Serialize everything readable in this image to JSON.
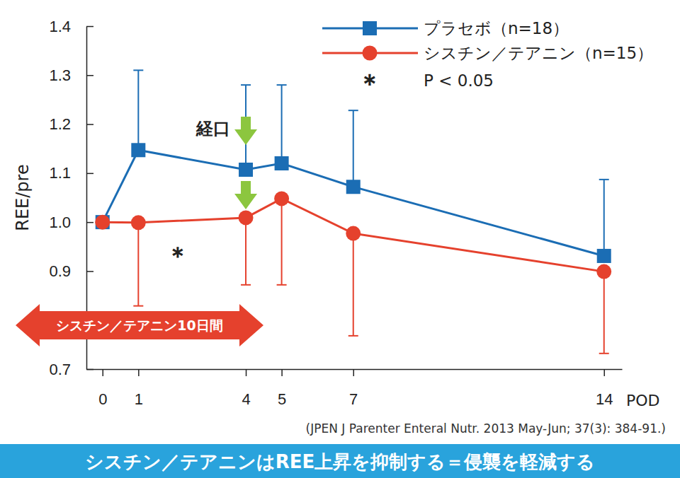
{
  "chart_data": {
    "type": "line",
    "y_label": "REE/pre",
    "x_label": "POD",
    "x": [
      0,
      1,
      4,
      5,
      7,
      14
    ],
    "xlim": [
      -0.45,
      14.5
    ],
    "xticks": [
      0,
      1,
      4,
      5,
      7,
      14
    ],
    "ylim": [
      0.7,
      1.4
    ],
    "yticks": [
      0.7,
      0.9,
      {
        "value": 1.0,
        "label": "1.0"
      },
      1.1,
      1.2,
      1.3,
      1.4
    ],
    "legend": "top-right",
    "series": [
      {
        "name": "プラセボ（n=18）",
        "color": "#1b6db4",
        "marker": "square",
        "values": [
          1.0,
          1.147,
          1.107,
          1.12,
          1.072,
          0.931
        ],
        "errors_upper": [
          0,
          0.163,
          0.173,
          0.16,
          0.156,
          0.156
        ]
      },
      {
        "name": "シスチン／テアニン（n=15）",
        "color": "#e5412d",
        "marker": "circle",
        "values": [
          1.0,
          0.999,
          1.009,
          1.048,
          0.977,
          0.899
        ],
        "errors_lower": [
          0,
          0.17,
          0.137,
          0.176,
          0.209,
          0.167
        ]
      }
    ],
    "significance_mark": "＊",
    "significance_label": "P < 0.05",
    "oral_label": "経口",
    "period_label": "シスチン／テアニン10日間",
    "citation": "(JPEN J Parenter Enteral Nutr. 2013 May-Jun; 37(3): 384-91.)",
    "conclusion": "シスチン／テアニンはREE上昇を抑制する＝侵襲を軽減する"
  }
}
